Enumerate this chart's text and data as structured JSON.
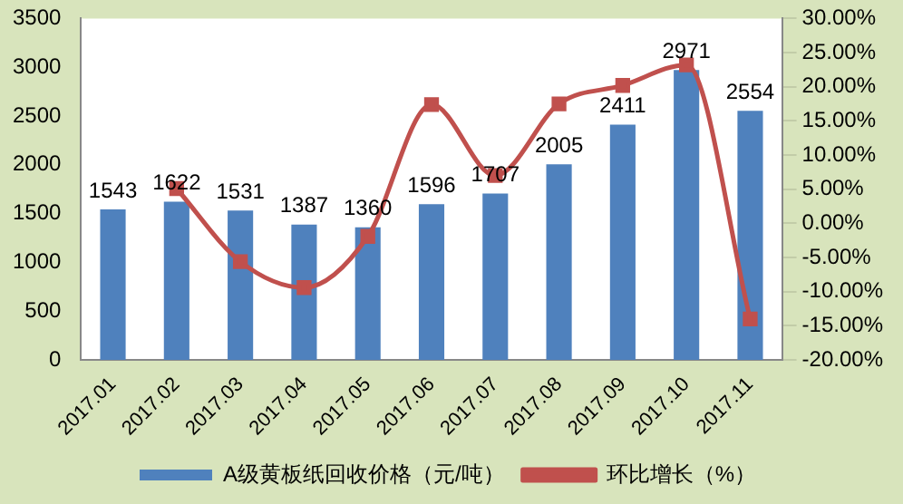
{
  "chart_data": {
    "type": "bar",
    "categories": [
      "2017.01",
      "2017.02",
      "2017.03",
      "2017.04",
      "2017.05",
      "2017.06",
      "2017.07",
      "2017.08",
      "2017.09",
      "2017.10",
      "2017.11"
    ],
    "series": [
      {
        "name": "A级黄板纸回收价格（元/吨）",
        "color": "#4f81bd",
        "values": [
          1543,
          1622,
          1531,
          1387,
          1360,
          1596,
          1707,
          2005,
          2411,
          2971,
          2554
        ],
        "value_labels": [
          "1543",
          "1622",
          "1531",
          "1387",
          "1360",
          "1596",
          "1707",
          "2005",
          "2411",
          "2971",
          "2554"
        ]
      },
      {
        "name": "环比增长（%）",
        "type": "line",
        "axis": "y2",
        "color": "#c0504d",
        "marker": "square",
        "values": [
          null,
          5.1,
          -5.6,
          -9.4,
          -1.9,
          17.4,
          7.0,
          17.5,
          20.2,
          23.2,
          -14.0
        ]
      }
    ],
    "ylim": [
      0,
      3500
    ],
    "yticks": [
      0,
      500,
      1000,
      1500,
      2000,
      2500,
      3000,
      3500
    ],
    "y2lim": [
      -20,
      30
    ],
    "y2ticks": [
      {
        "value": -20,
        "label": "-20.00%"
      },
      {
        "value": -15,
        "label": "-15.00%"
      },
      {
        "value": -10,
        "label": "-10.00%"
      },
      {
        "value": -5,
        "label": "-5.00%"
      },
      {
        "value": 0,
        "label": "0.00%"
      },
      {
        "value": 5,
        "label": "5.00%"
      },
      {
        "value": 10,
        "label": "10.00%"
      },
      {
        "value": 15,
        "label": "15.00%"
      },
      {
        "value": 20,
        "label": "20.00%"
      },
      {
        "value": 25,
        "label": "25.00%"
      },
      {
        "value": 30,
        "label": "30.00%"
      }
    ],
    "grid": false,
    "legend": "bottom"
  }
}
